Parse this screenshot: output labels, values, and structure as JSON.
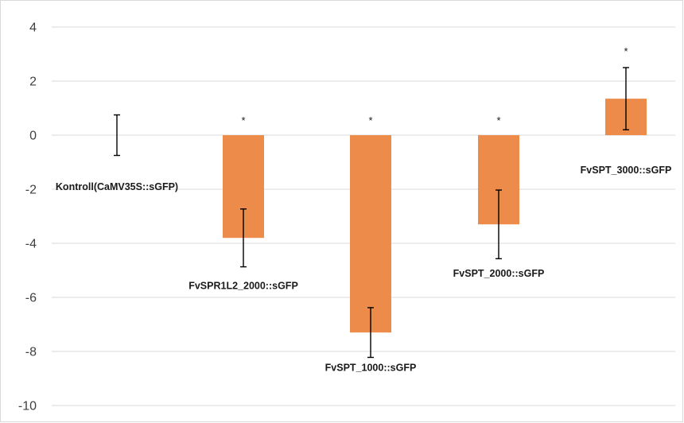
{
  "chart_data": {
    "type": "bar",
    "title": "",
    "xlabel": "",
    "ylabel": "",
    "ylim": [
      -10,
      4
    ],
    "yticks": [
      4,
      2,
      0,
      -2,
      -4,
      -6,
      -8,
      -10
    ],
    "grid": true,
    "legend": "none",
    "bar_color": "#ED8B4A",
    "errorbar_color": "#000000",
    "grid_color": "#D9D9D9",
    "categories": [
      "Kontroll(CaMV35S::sGFP)",
      "FvSPR1L2_2000::sGFP",
      "FvSPT_1000::sGFP",
      "FvSPT_2000::sGFP",
      "FvSPT_3000::sGFP"
    ],
    "values": [
      0,
      -3.8,
      -7.3,
      -3.3,
      1.35
    ],
    "error": [
      0.75,
      1.07,
      0.92,
      1.27,
      1.15
    ],
    "significance": [
      "",
      "*",
      "*",
      "*",
      "*"
    ]
  }
}
